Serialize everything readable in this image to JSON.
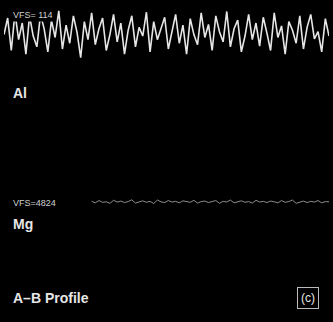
{
  "chart_data": {
    "type": "line",
    "title": "A–B Profile",
    "panel_label": "(c)",
    "tick_labels": false,
    "grid": false,
    "ylim": [
      0,
      100
    ],
    "y2lim": [
      0,
      100
    ],
    "series": [
      {
        "name": "Al",
        "scale_label": "VFS= 114",
        "color": "#e6e6e6",
        "values": [
          62,
          85,
          40,
          92,
          55,
          78,
          35,
          88,
          60,
          45,
          90,
          70,
          38,
          82,
          58,
          95,
          42,
          75,
          50,
          88,
          65,
          30,
          80,
          55,
          92,
          48,
          70,
          85,
          40,
          62,
          90,
          52,
          78,
          35,
          68,
          88,
          45,
          72,
          60,
          93,
          38,
          80,
          55,
          70,
          86,
          42,
          65,
          90,
          50,
          75,
          35,
          84,
          62,
          48,
          92,
          58,
          76,
          40,
          88,
          66,
          52,
          94,
          45,
          70,
          82,
          38,
          60,
          90,
          55,
          78,
          46,
          86,
          64,
          40,
          92,
          58,
          74,
          35,
          80,
          68,
          50,
          88,
          42,
          72,
          90,
          56,
          66,
          38,
          84,
          60
        ]
      },
      {
        "name": "Mg",
        "scale_label": "VFS=4824",
        "color": "#8c8c8c",
        "axis": "y2",
        "values": [
          null,
          null,
          null,
          null,
          null,
          null,
          null,
          null,
          null,
          null,
          null,
          null,
          null,
          null,
          null,
          null,
          null,
          null,
          null,
          null,
          null,
          null,
          null,
          null,
          52,
          46,
          55,
          48,
          50,
          44,
          56,
          49,
          53,
          47,
          51,
          58,
          45,
          50,
          54,
          48,
          52,
          43,
          57,
          50,
          47,
          55,
          49,
          52,
          46,
          54,
          50,
          48,
          56,
          45,
          51,
          53,
          47,
          50,
          55,
          44,
          52,
          49,
          57,
          46,
          50,
          54,
          48,
          51,
          45,
          56,
          49,
          52,
          47,
          53,
          50,
          46,
          55,
          48,
          51,
          57,
          44,
          50,
          53,
          47,
          52,
          49,
          55,
          46,
          51,
          50
        ]
      }
    ]
  }
}
